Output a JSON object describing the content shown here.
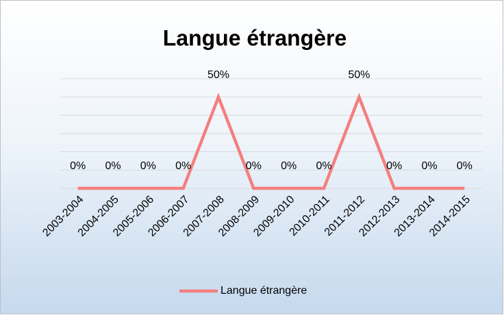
{
  "chart_data": {
    "type": "line",
    "title": "Langue étrangère",
    "categories": [
      "2003-2004",
      "2004-2005",
      "2005-2006",
      "2006-2007",
      "2007-2008",
      "2008-2009",
      "2009-2010",
      "2010-2011",
      "2011-2012",
      "2012-2013",
      "2013-2014",
      "2014-2015"
    ],
    "series": [
      {
        "name": "Langue étrangère",
        "color": "#f47f7f",
        "values": [
          0,
          0,
          0,
          0,
          50,
          0,
          0,
          0,
          50,
          0,
          0,
          0
        ],
        "value_labels": [
          "0%",
          "0%",
          "0%",
          "0%",
          "50%",
          "0%",
          "0%",
          "0%",
          "50%",
          "0%",
          "0%",
          "0%"
        ]
      }
    ],
    "ylim": [
      0,
      60
    ],
    "yticks": [
      0,
      10,
      20,
      30,
      40,
      50,
      60
    ],
    "grid": true,
    "legend": "bottom"
  }
}
